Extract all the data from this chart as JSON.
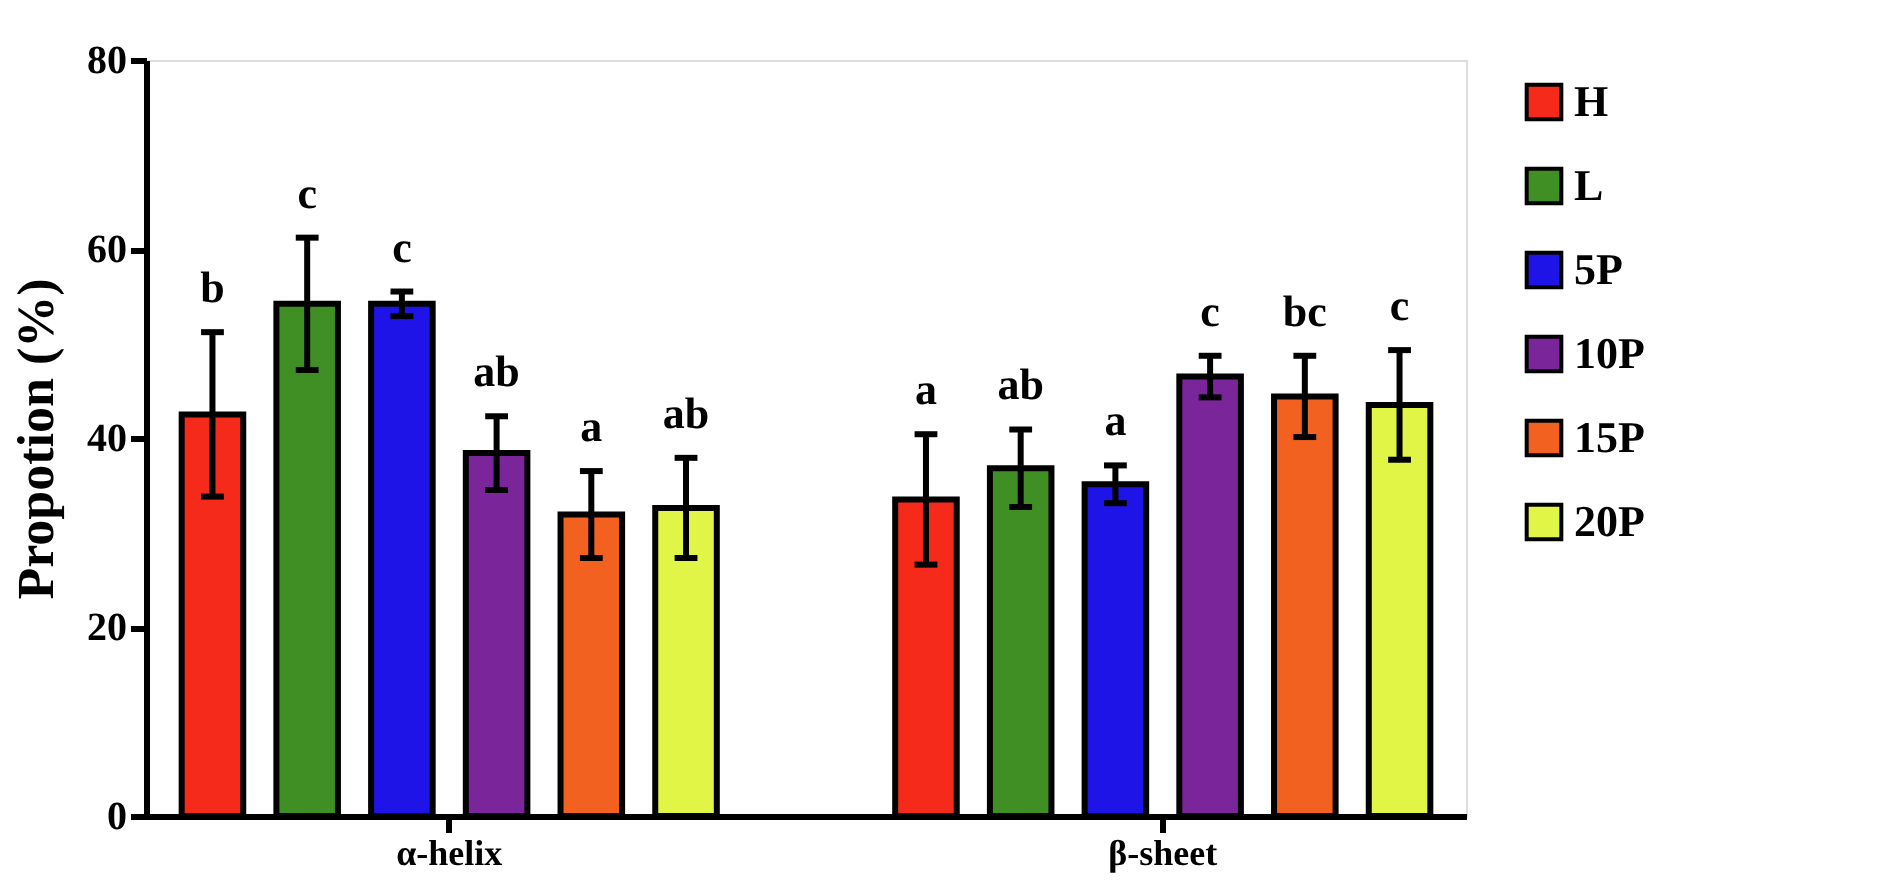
{
  "chart_data": {
    "type": "bar",
    "ylabel": "Propotion (%)",
    "categories": [
      "α-helix",
      "β-sheet"
    ],
    "ylim": [
      0,
      80
    ],
    "yticks": [
      0,
      20,
      40,
      60,
      80
    ],
    "grid": false,
    "legend": "right",
    "series": [
      {
        "name": "H",
        "color": "#f52a1a",
        "values": [
          42.5,
          33.5
        ],
        "errors": [
          8.7,
          6.9
        ],
        "value_labels": [
          "b",
          "a"
        ]
      },
      {
        "name": "L",
        "color": "#3f8f25",
        "values": [
          54.2,
          36.8
        ],
        "errors": [
          7.0,
          4.1
        ],
        "value_labels": [
          "c",
          "ab"
        ]
      },
      {
        "name": "5P",
        "color": "#1e14e8",
        "values": [
          54.2,
          35.1
        ],
        "errors": [
          1.3,
          2.0
        ],
        "value_labels": [
          "c",
          "a"
        ]
      },
      {
        "name": "10P",
        "color": "#7a2599",
        "values": [
          38.4,
          46.5
        ],
        "errors": [
          3.9,
          2.2
        ],
        "value_labels": [
          "ab",
          "c"
        ]
      },
      {
        "name": "15P",
        "color": "#f2611f",
        "values": [
          31.9,
          44.4
        ],
        "errors": [
          4.6,
          4.3
        ],
        "value_labels": [
          "a",
          "bc"
        ]
      },
      {
        "name": "20P",
        "color": "#e0f545",
        "values": [
          32.6,
          43.5
        ],
        "errors": [
          5.3,
          5.8
        ],
        "value_labels": [
          "ab",
          "c"
        ]
      }
    ]
  }
}
